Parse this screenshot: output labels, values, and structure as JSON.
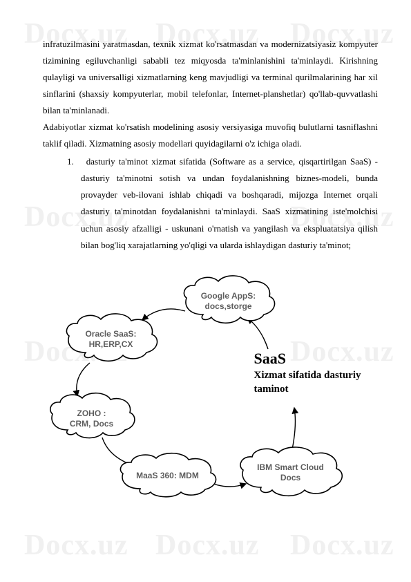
{
  "watermark": "Docx.uz",
  "paragraphs": {
    "p1": "infratuzilmasini yaratmasdan, texnik xizmat ko'rsatmasdan va modernizatsiyasiz kompyuter tizimining egiluvchanligi sababli tez miqyosda ta'minlanishini ta'minlaydi. Kirishning qulayligi va universalligi xizmatlarning keng mavjudligi va terminal qurilmalarining har xil sinflarini (shaxsiy kompyuterlar, mobil telefonlar, Internet-planshetlar) qo'llab-quvvatlashi bilan ta'minlanadi.\n   Adabiyotlar xizmat ko'rsatish modelining asosiy versiyasiga muvofiq bulutlarni tasniflashni taklif qiladi. Xizmatning asosiy modellari quyidagilarni o'z ichiga oladi.",
    "li_num": "1.",
    "li_text": "dasturiy ta'minot xizmat sifatida (Software as a service, qisqartirilgan SaaS) - dasturiy ta'minotni sotish va undan foydalanishning biznes-modeli, bunda provayder veb-ilovani ishlab chiqadi va boshqaradi, mijozga Internet orqali dasturiy ta'minotdan foydalanishni ta'minlaydi. SaaS xizmatining iste'molchisi uchun asosiy afzalligi - uskunani o'rnatish va yangilash va ekspluatatsiya qilish bilan bog'liq xarajatlarning yo'qligi va ularda ishlaydigan dasturiy ta'minot;"
  },
  "diagram": {
    "clouds": {
      "google": {
        "line1": "Google AppS:",
        "line2": "docs,storge"
      },
      "oracle": {
        "line1": "Oracle SaaS:",
        "line2": "HR,ERP,CX"
      },
      "zoho": {
        "line1": "ZOHO :",
        "line2": "CRM, Docs"
      },
      "maas": {
        "line1": "MaaS 360: MDM",
        "line2": ""
      },
      "ibm": {
        "line1": "IBM Smart Cloud",
        "line2": "Docs"
      }
    },
    "label": {
      "title": "SaaS",
      "sub": "Xizmat sifatida dasturiy taminot"
    },
    "colors": {
      "cloud_stroke": "#000000",
      "cloud_fill": "#ffffff",
      "text": "#5d5d5d"
    }
  }
}
